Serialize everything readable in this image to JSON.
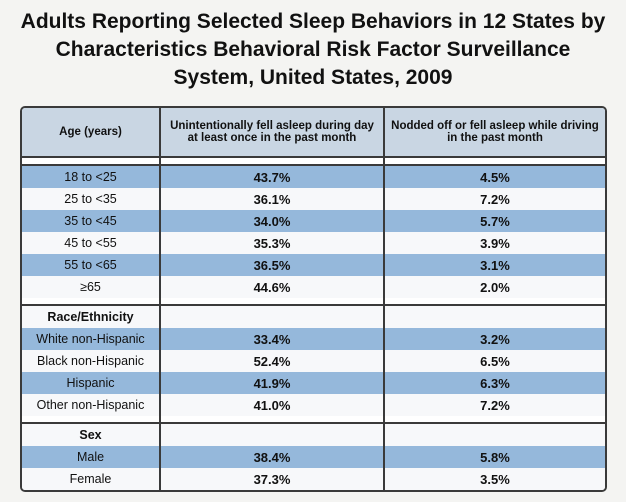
{
  "title": "Adults Reporting Selected Sleep Behaviors in 12 States by Characteristics Behavioral Risk Factor Surveillance System, United States, 2009",
  "table": {
    "header": [
      "Age (years)",
      "Unintentionally fell asleep during day at least once in the past month",
      "Nodded off or fell asleep while driving in the past month"
    ],
    "sections": [
      {
        "rows": [
          [
            "18 to <25",
            "43.7%",
            "4.5%"
          ],
          [
            "25 to <35",
            "36.1%",
            "7.2%"
          ],
          [
            "35 to <45",
            "34.0%",
            "5.7%"
          ],
          [
            "45 to <55",
            "35.3%",
            "3.9%"
          ],
          [
            "55 to <65",
            "36.5%",
            "3.1%"
          ],
          [
            "≥65",
            "44.6%",
            "2.0%"
          ]
        ]
      },
      {
        "heading": "Race/Ethnicity",
        "rows": [
          [
            "White non-Hispanic",
            "33.4%",
            "3.2%"
          ],
          [
            "Black non-Hispanic",
            "52.4%",
            "6.5%"
          ],
          [
            "Hispanic",
            "41.9%",
            "6.3%"
          ],
          [
            "Other non-Hispanic",
            "41.0%",
            "7.2%"
          ]
        ]
      },
      {
        "heading": "Sex",
        "rows": [
          [
            "Male",
            "38.4%",
            "5.8%"
          ],
          [
            "Female",
            "37.3%",
            "3.5%"
          ]
        ]
      }
    ]
  }
}
